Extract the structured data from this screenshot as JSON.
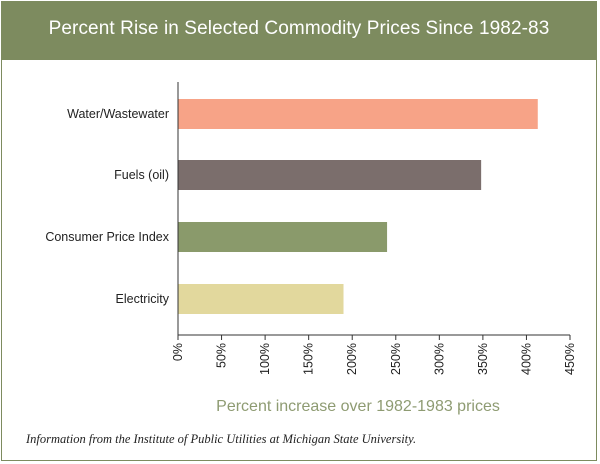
{
  "title": "Percent Rise in Selected Commodity Prices Since 1982-83",
  "source_note": "Information from the Institute of Public Utilities at Michigan State University.",
  "colors": {
    "header": "#7d8b5f",
    "axis_label": "#8e9b72"
  },
  "chart_data": {
    "type": "bar",
    "orientation": "horizontal",
    "title": "Percent Rise in Selected Commodity Prices Since 1982-83",
    "xlabel": "Percent increase over 1982-1983 prices",
    "ylabel": "",
    "categories": [
      "Water/Wastewater",
      "Fuels (oil)",
      "Consumer Price Index",
      "Electricity"
    ],
    "values": [
      413,
      348,
      240,
      190
    ],
    "bar_colors": [
      "#f7a387",
      "#7b6e6c",
      "#8a9a6b",
      "#e2d89d"
    ],
    "xlim": [
      0,
      450
    ],
    "ticks": [
      0,
      50,
      100,
      150,
      200,
      250,
      300,
      350,
      400,
      450
    ],
    "tick_labels": [
      "0%",
      "50%",
      "100%",
      "150%",
      "200%",
      "250%",
      "300%",
      "350%",
      "400%",
      "450%"
    ],
    "grid": false,
    "legend": "none"
  }
}
